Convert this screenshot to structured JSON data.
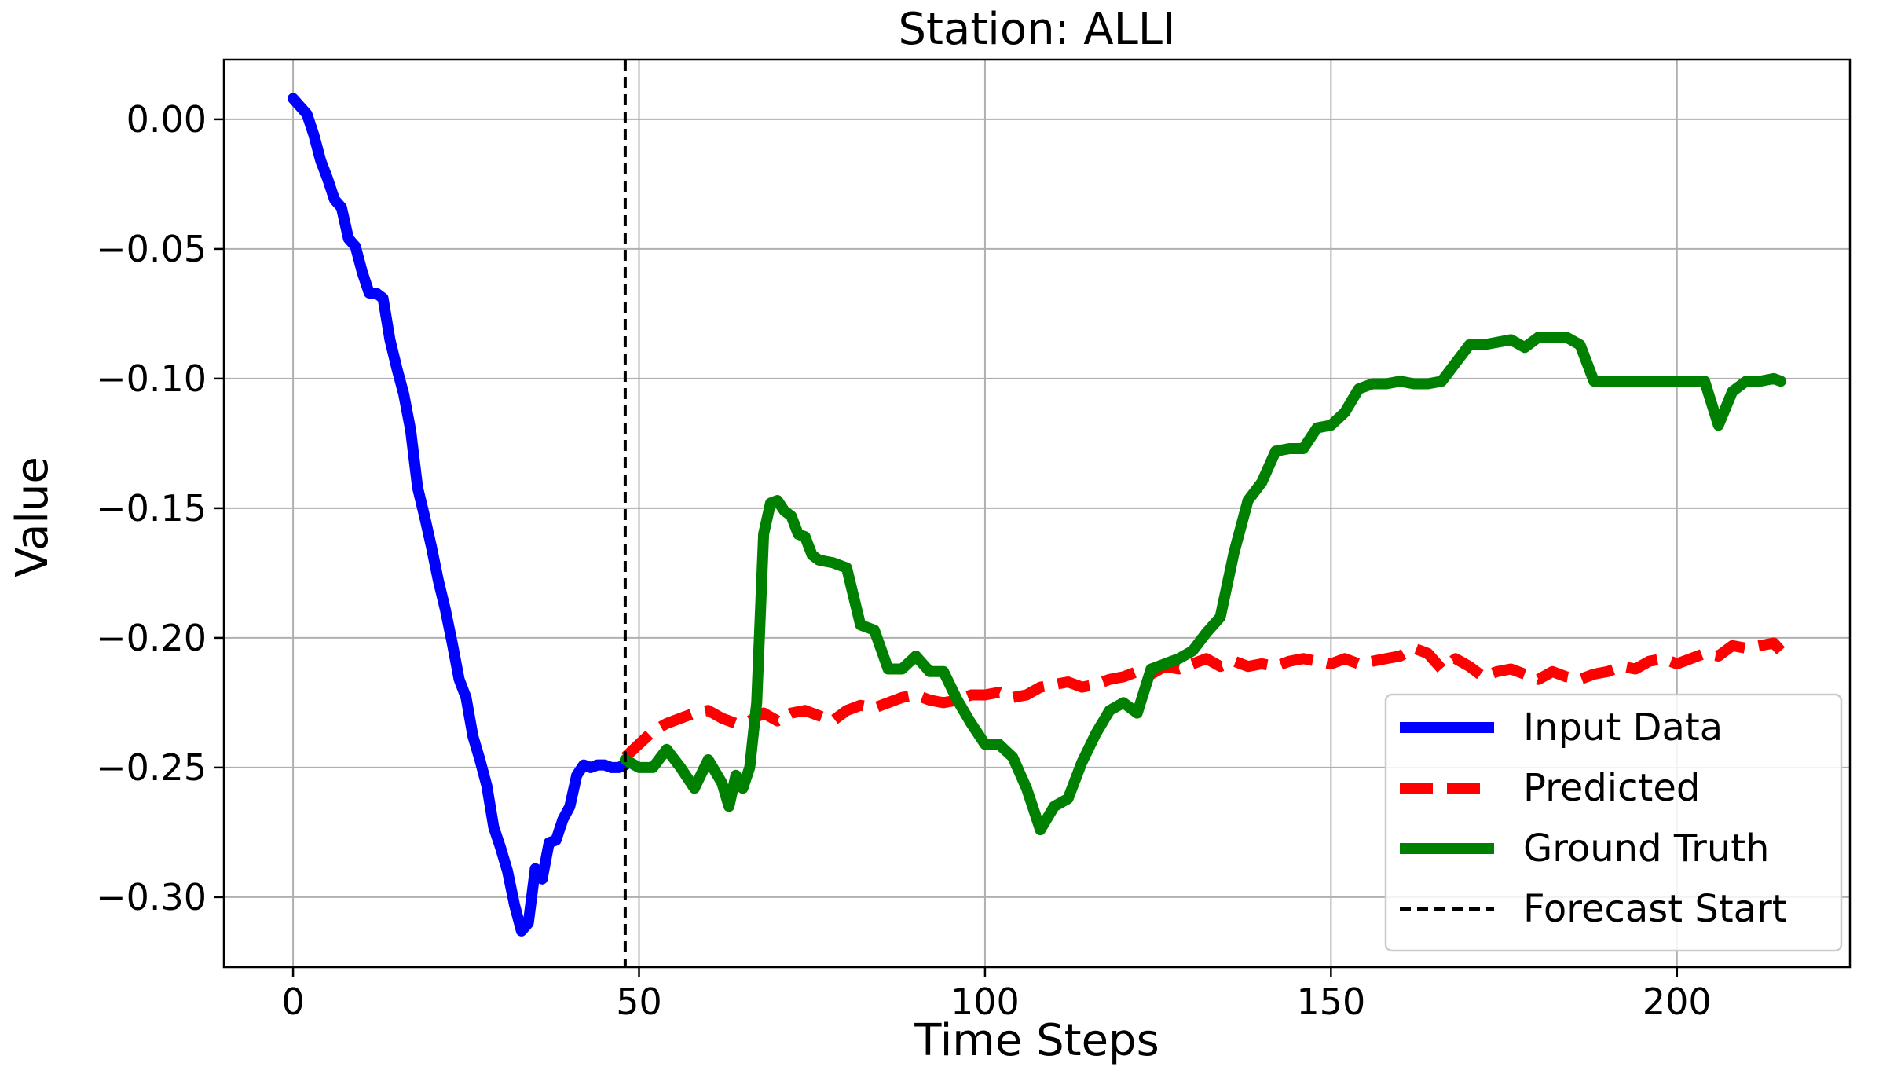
{
  "chart_data": {
    "type": "line",
    "title": "Station: ALLI",
    "xlabel": "Time Steps",
    "ylabel": "Value",
    "xlim": [
      -10,
      225
    ],
    "ylim": [
      -0.327,
      0.023
    ],
    "x_ticks": [
      0,
      50,
      100,
      150,
      200
    ],
    "x_tick_labels": [
      "0",
      "50",
      "100",
      "150",
      "200"
    ],
    "y_ticks": [
      0.0,
      -0.05,
      -0.1,
      -0.15,
      -0.2,
      -0.25,
      -0.3
    ],
    "y_tick_labels": [
      "0.00",
      "−0.05",
      "−0.10",
      "−0.15",
      "−0.20",
      "−0.25",
      "−0.30"
    ],
    "grid": true,
    "legend_position": "lower-right",
    "forecast_start_x": 48,
    "series": [
      {
        "name": "Input Data",
        "color": "#0000ff",
        "style": "solid",
        "x": [
          0,
          1,
          2,
          3,
          4,
          5,
          6,
          7,
          8,
          9,
          10,
          11,
          12,
          13,
          14,
          15,
          16,
          17,
          18,
          19,
          20,
          21,
          22,
          23,
          24,
          25,
          26,
          27,
          28,
          29,
          30,
          31,
          32,
          33,
          34,
          35,
          36,
          37,
          38,
          39,
          40,
          41,
          42,
          43,
          44,
          45,
          46,
          47,
          48
        ],
        "y": [
          0.008,
          0.005,
          0.002,
          -0.006,
          -0.016,
          -0.023,
          -0.031,
          -0.034,
          -0.046,
          -0.049,
          -0.059,
          -0.067,
          -0.067,
          -0.069,
          -0.085,
          -0.096,
          -0.106,
          -0.12,
          -0.142,
          -0.153,
          -0.165,
          -0.178,
          -0.189,
          -0.202,
          -0.216,
          -0.223,
          -0.238,
          -0.247,
          -0.257,
          -0.273,
          -0.281,
          -0.29,
          -0.303,
          -0.313,
          -0.31,
          -0.289,
          -0.293,
          -0.279,
          -0.278,
          -0.27,
          -0.265,
          -0.253,
          -0.249,
          -0.25,
          -0.249,
          -0.249,
          -0.25,
          -0.25,
          -0.249
        ]
      },
      {
        "name": "Predicted",
        "color": "#ff0000",
        "style": "dashed",
        "x": [
          48,
          50,
          52,
          54,
          56,
          58,
          60,
          62,
          64,
          66,
          68,
          70,
          72,
          74,
          76,
          78,
          80,
          82,
          84,
          86,
          88,
          90,
          92,
          94,
          96,
          98,
          100,
          102,
          104,
          106,
          108,
          110,
          112,
          114,
          116,
          118,
          120,
          122,
          124,
          126,
          128,
          130,
          132,
          134,
          136,
          138,
          140,
          142,
          144,
          146,
          148,
          150,
          152,
          154,
          156,
          158,
          160,
          162,
          164,
          166,
          168,
          170,
          172,
          174,
          176,
          178,
          180,
          182,
          184,
          186,
          188,
          190,
          192,
          194,
          196,
          198,
          200,
          202,
          204,
          206,
          208,
          210,
          212,
          214,
          215
        ],
        "y": [
          -0.246,
          -0.241,
          -0.236,
          -0.233,
          -0.231,
          -0.229,
          -0.228,
          -0.231,
          -0.233,
          -0.232,
          -0.229,
          -0.232,
          -0.229,
          -0.228,
          -0.23,
          -0.232,
          -0.228,
          -0.226,
          -0.227,
          -0.225,
          -0.223,
          -0.222,
          -0.224,
          -0.225,
          -0.224,
          -0.222,
          -0.222,
          -0.221,
          -0.223,
          -0.222,
          -0.219,
          -0.218,
          -0.217,
          -0.219,
          -0.218,
          -0.216,
          -0.215,
          -0.213,
          -0.214,
          -0.211,
          -0.212,
          -0.21,
          -0.208,
          -0.211,
          -0.209,
          -0.211,
          -0.21,
          -0.211,
          -0.209,
          -0.208,
          -0.209,
          -0.21,
          -0.208,
          -0.21,
          -0.209,
          -0.208,
          -0.207,
          -0.204,
          -0.206,
          -0.212,
          -0.208,
          -0.211,
          -0.215,
          -0.213,
          -0.212,
          -0.214,
          -0.216,
          -0.213,
          -0.215,
          -0.216,
          -0.214,
          -0.213,
          -0.211,
          -0.212,
          -0.209,
          -0.208,
          -0.21,
          -0.208,
          -0.206,
          -0.207,
          -0.203,
          -0.204,
          -0.203,
          -0.202,
          -0.205
        ]
      },
      {
        "name": "Ground Truth",
        "color": "#008000",
        "style": "solid",
        "x": [
          48,
          50,
          52,
          54,
          56,
          58,
          60,
          62,
          63,
          64,
          65,
          66,
          67,
          68,
          69,
          70,
          71,
          72,
          73,
          74,
          75,
          76,
          78,
          80,
          82,
          84,
          86,
          88,
          90,
          92,
          94,
          96,
          98,
          100,
          102,
          104,
          106,
          108,
          110,
          112,
          114,
          116,
          118,
          120,
          122,
          124,
          126,
          128,
          130,
          132,
          134,
          136,
          138,
          140,
          142,
          144,
          146,
          148,
          150,
          152,
          154,
          156,
          158,
          160,
          162,
          164,
          166,
          168,
          170,
          172,
          174,
          176,
          178,
          180,
          182,
          184,
          186,
          188,
          190,
          192,
          194,
          196,
          198,
          200,
          202,
          204,
          206,
          208,
          210,
          212,
          214,
          215
        ],
        "y": [
          -0.247,
          -0.25,
          -0.25,
          -0.243,
          -0.25,
          -0.258,
          -0.247,
          -0.256,
          -0.265,
          -0.253,
          -0.258,
          -0.25,
          -0.225,
          -0.16,
          -0.148,
          -0.147,
          -0.151,
          -0.153,
          -0.16,
          -0.161,
          -0.168,
          -0.17,
          -0.171,
          -0.173,
          -0.195,
          -0.197,
          -0.212,
          -0.212,
          -0.207,
          -0.213,
          -0.213,
          -0.224,
          -0.233,
          -0.241,
          -0.241,
          -0.246,
          -0.258,
          -0.274,
          -0.265,
          -0.262,
          -0.248,
          -0.237,
          -0.228,
          -0.225,
          -0.229,
          -0.212,
          -0.21,
          -0.208,
          -0.205,
          -0.198,
          -0.192,
          -0.167,
          -0.147,
          -0.14,
          -0.128,
          -0.127,
          -0.127,
          -0.119,
          -0.118,
          -0.113,
          -0.104,
          -0.102,
          -0.102,
          -0.101,
          -0.102,
          -0.102,
          -0.101,
          -0.094,
          -0.087,
          -0.087,
          -0.086,
          -0.085,
          -0.088,
          -0.084,
          -0.084,
          -0.084,
          -0.087,
          -0.101,
          -0.101,
          -0.101,
          -0.101,
          -0.101,
          -0.101,
          -0.101,
          -0.101,
          -0.101,
          -0.118,
          -0.105,
          -0.101,
          -0.101,
          -0.1,
          -0.101
        ]
      }
    ],
    "legend_entries": [
      {
        "label": "Input Data",
        "color": "#0000ff",
        "style": "solid"
      },
      {
        "label": "Predicted",
        "color": "#ff0000",
        "style": "dashed"
      },
      {
        "label": "Ground Truth",
        "color": "#008000",
        "style": "solid"
      },
      {
        "label": "Forecast Start",
        "color": "#000000",
        "style": "thin-dashed"
      }
    ]
  }
}
